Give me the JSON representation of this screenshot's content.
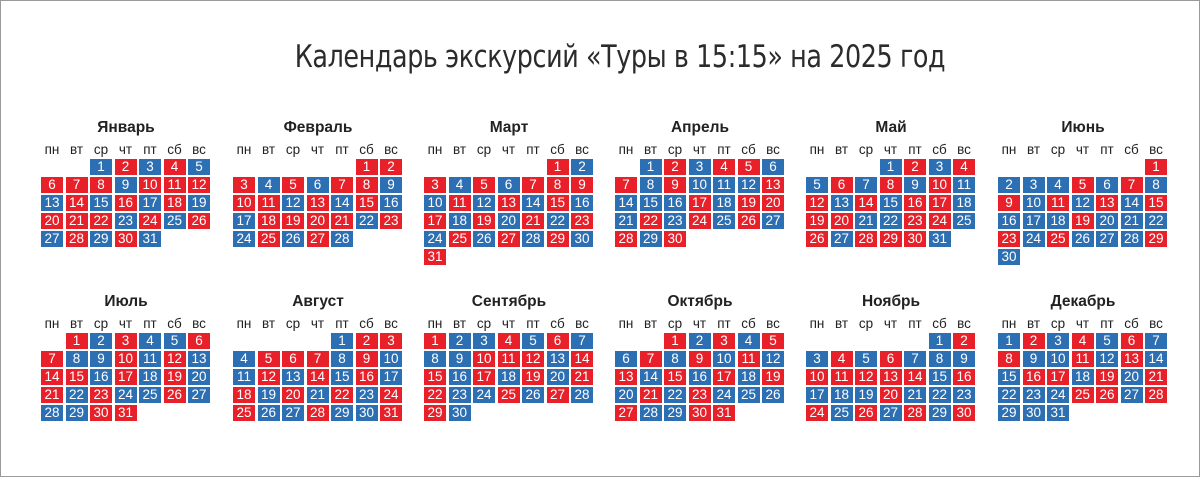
{
  "title": "Календарь экскурсий «Туры в 15:15» на 2025 год",
  "weekdays": [
    "пн",
    "вт",
    "ср",
    "чт",
    "пт",
    "сб",
    "вс"
  ],
  "colors": {
    "blue": "#2c6fb3",
    "red": "#e8202a"
  },
  "months": [
    {
      "name": "Январь",
      "start_offset": 2,
      "colors": [
        "b",
        "r",
        "b",
        "r",
        "b",
        "r",
        "r",
        "r",
        "b",
        "r",
        "r",
        "r",
        "b",
        "r",
        "b",
        "r",
        "b",
        "r",
        "b",
        "r",
        "r",
        "r",
        "b",
        "r",
        "b",
        "r",
        "b",
        "r",
        "b",
        "r",
        "b"
      ]
    },
    {
      "name": "Февраль",
      "start_offset": 5,
      "colors": [
        "r",
        "r",
        "r",
        "b",
        "r",
        "b",
        "r",
        "r",
        "b",
        "r",
        "r",
        "b",
        "r",
        "b",
        "r",
        "b",
        "b",
        "r",
        "r",
        "r",
        "r",
        "b",
        "r",
        "b",
        "r",
        "b",
        "r",
        "b"
      ]
    },
    {
      "name": "Март",
      "start_offset": 5,
      "colors": [
        "r",
        "b",
        "r",
        "b",
        "r",
        "b",
        "r",
        "r",
        "r",
        "b",
        "r",
        "b",
        "r",
        "b",
        "r",
        "b",
        "r",
        "b",
        "r",
        "b",
        "r",
        "b",
        "r",
        "b",
        "r",
        "b",
        "r",
        "b",
        "r",
        "b",
        "r"
      ]
    },
    {
      "name": "Апрель",
      "start_offset": 1,
      "colors": [
        "b",
        "r",
        "b",
        "r",
        "r",
        "b",
        "r",
        "b",
        "r",
        "b",
        "b",
        "b",
        "r",
        "b",
        "b",
        "b",
        "r",
        "b",
        "r",
        "r",
        "b",
        "r",
        "b",
        "r",
        "b",
        "r",
        "b",
        "r",
        "b",
        "r"
      ]
    },
    {
      "name": "Май",
      "start_offset": 3,
      "colors": [
        "b",
        "r",
        "b",
        "r",
        "b",
        "r",
        "b",
        "r",
        "b",
        "r",
        "b",
        "r",
        "b",
        "r",
        "b",
        "r",
        "r",
        "b",
        "r",
        "r",
        "b",
        "b",
        "r",
        "r",
        "b",
        "r",
        "b",
        "r",
        "r",
        "r",
        "b"
      ]
    },
    {
      "name": "Июнь",
      "start_offset": 6,
      "colors": [
        "r",
        "b",
        "b",
        "b",
        "r",
        "b",
        "r",
        "b",
        "r",
        "b",
        "r",
        "b",
        "r",
        "b",
        "r",
        "b",
        "b",
        "b",
        "r",
        "b",
        "b",
        "b",
        "r",
        "b",
        "r",
        "b",
        "b",
        "b",
        "r",
        "b"
      ]
    },
    {
      "name": "Июль",
      "start_offset": 1,
      "colors": [
        "r",
        "b",
        "r",
        "b",
        "b",
        "r",
        "r",
        "b",
        "b",
        "r",
        "b",
        "r",
        "b",
        "r",
        "r",
        "b",
        "r",
        "b",
        "r",
        "b",
        "r",
        "b",
        "r",
        "b",
        "b",
        "r",
        "b",
        "b",
        "b",
        "r",
        "r"
      ]
    },
    {
      "name": "Август",
      "start_offset": 4,
      "colors": [
        "b",
        "r",
        "r",
        "b",
        "r",
        "r",
        "r",
        "b",
        "r",
        "b",
        "b",
        "r",
        "b",
        "r",
        "b",
        "r",
        "b",
        "r",
        "b",
        "r",
        "b",
        "r",
        "b",
        "r",
        "r",
        "b",
        "b",
        "r",
        "b",
        "b",
        "r"
      ]
    },
    {
      "name": "Сентябрь",
      "start_offset": 0,
      "colors": [
        "r",
        "b",
        "b",
        "r",
        "b",
        "r",
        "b",
        "b",
        "b",
        "r",
        "r",
        "r",
        "b",
        "r",
        "r",
        "b",
        "r",
        "b",
        "r",
        "b",
        "r",
        "r",
        "b",
        "b",
        "r",
        "b",
        "r",
        "b",
        "r",
        "b"
      ]
    },
    {
      "name": "Октябрь",
      "start_offset": 2,
      "colors": [
        "r",
        "b",
        "r",
        "b",
        "r",
        "b",
        "r",
        "b",
        "r",
        "b",
        "r",
        "b",
        "r",
        "b",
        "r",
        "b",
        "r",
        "b",
        "r",
        "b",
        "r",
        "b",
        "r",
        "b",
        "b",
        "b",
        "r",
        "b",
        "b",
        "r",
        "r"
      ]
    },
    {
      "name": "Ноябрь",
      "start_offset": 5,
      "colors": [
        "b",
        "r",
        "b",
        "r",
        "b",
        "r",
        "b",
        "b",
        "b",
        "r",
        "r",
        "r",
        "r",
        "r",
        "b",
        "r",
        "b",
        "b",
        "b",
        "r",
        "b",
        "b",
        "b",
        "r",
        "b",
        "r",
        "b",
        "r",
        "b",
        "r"
      ]
    },
    {
      "name": "Декабрь",
      "start_offset": 0,
      "colors": [
        "b",
        "r",
        "b",
        "r",
        "b",
        "r",
        "b",
        "r",
        "b",
        "b",
        "r",
        "b",
        "r",
        "b",
        "b",
        "r",
        "r",
        "b",
        "r",
        "b",
        "r",
        "b",
        "b",
        "b",
        "r",
        "r",
        "b",
        "r",
        "b",
        "b",
        "b"
      ]
    }
  ]
}
